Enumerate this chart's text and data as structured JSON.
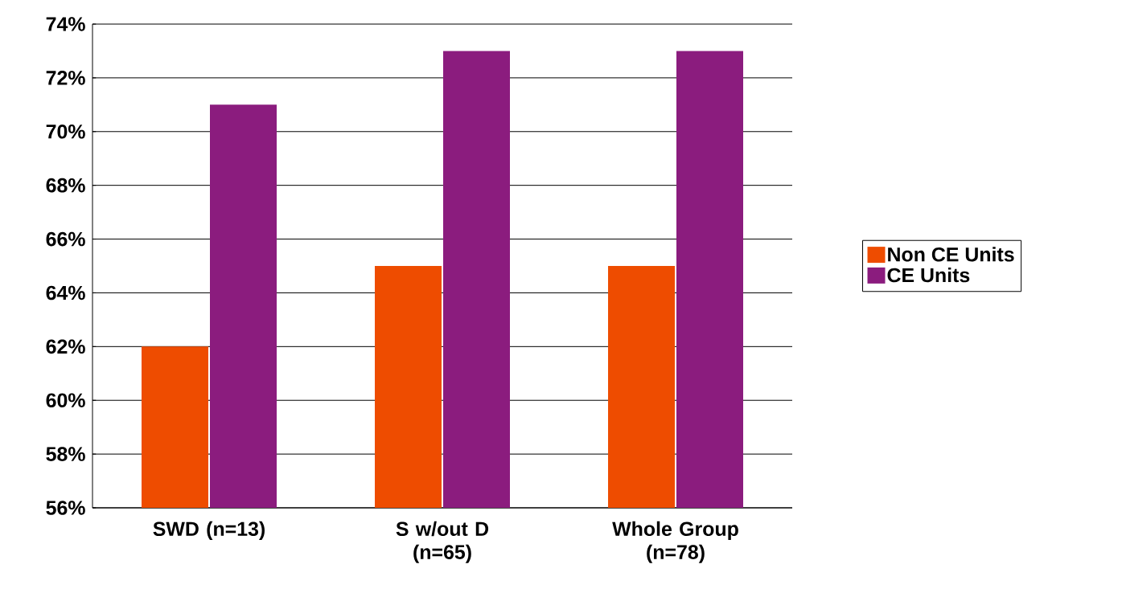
{
  "chart_data": {
    "type": "bar",
    "categories": [
      "SWD (n=13)",
      "S w/out D (n=65)",
      "Whole Group (n=78)"
    ],
    "series": [
      {
        "name": "Non CE Units",
        "color": "#ee4c00",
        "values": [
          62,
          65,
          65
        ]
      },
      {
        "name": "CE Units",
        "color": "#8b1c7e",
        "values": [
          71,
          73,
          73
        ]
      }
    ],
    "ylim": [
      56,
      74
    ],
    "yticks": [
      {
        "value": 56,
        "label": "56%"
      },
      {
        "value": 58,
        "label": "58%"
      },
      {
        "value": 60,
        "label": "60%"
      },
      {
        "value": 62,
        "label": "62%"
      },
      {
        "value": 64,
        "label": "64%"
      },
      {
        "value": 66,
        "label": "66%"
      },
      {
        "value": 68,
        "label": "68%"
      },
      {
        "value": 70,
        "label": "70%"
      },
      {
        "value": 72,
        "label": "72%"
      },
      {
        "value": 74,
        "label": "74%"
      }
    ],
    "grid": "y",
    "legend": "right"
  }
}
